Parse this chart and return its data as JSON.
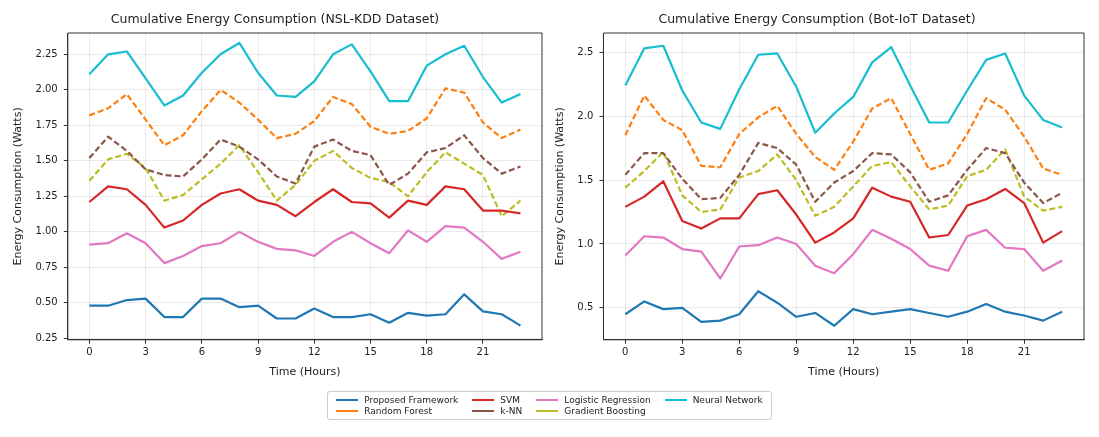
{
  "chart_data": [
    {
      "type": "line",
      "title": "Cumulative Energy Consumption (NSL-KDD Dataset)",
      "xlabel": "Time (Hours)",
      "ylabel": "Energy Consumption (Watts)",
      "x": [
        0,
        1,
        2,
        3,
        4,
        5,
        6,
        7,
        8,
        9,
        10,
        11,
        12,
        13,
        14,
        15,
        16,
        17,
        18,
        19,
        20,
        21,
        22,
        23
      ],
      "xlim": [
        -1.15,
        24.15
      ],
      "xticks": [
        0,
        3,
        6,
        9,
        12,
        15,
        18,
        21
      ],
      "ylim": [
        0.24,
        2.4
      ],
      "yticks": [
        {
          "value": 0.25,
          "label": "0.25"
        },
        {
          "value": 0.5,
          "label": "0.50"
        },
        {
          "value": 0.75,
          "label": "0.75"
        },
        {
          "value": 1,
          "label": "1.00"
        },
        {
          "value": 1.25,
          "label": "1.25"
        },
        {
          "value": 1.5,
          "label": "1.50"
        },
        {
          "value": 1.75,
          "label": "1.75"
        },
        {
          "value": 2,
          "label": "2.00"
        },
        {
          "value": 2.25,
          "label": "2.25"
        }
      ],
      "grid": true,
      "marker": "none",
      "legend": "bottom",
      "series": [
        {
          "name": "Proposed Framework",
          "color": "#1f77b4",
          "line_style": "solid",
          "values": [
            0.48,
            0.48,
            0.52,
            0.53,
            0.4,
            0.4,
            0.53,
            0.53,
            0.47,
            0.48,
            0.39,
            0.39,
            0.46,
            0.4,
            0.4,
            0.42,
            0.36,
            0.43,
            0.41,
            0.42,
            0.56,
            0.44,
            0.42,
            0.34
          ]
        },
        {
          "name": "Random Forest",
          "color": "#ff7f0e",
          "line_style": "dashed",
          "values": [
            1.82,
            1.87,
            1.97,
            1.79,
            1.61,
            1.68,
            1.85,
            2.0,
            1.91,
            1.79,
            1.66,
            1.69,
            1.78,
            1.95,
            1.9,
            1.74,
            1.69,
            1.71,
            1.8,
            2.01,
            1.98,
            1.77,
            1.66,
            1.72
          ]
        },
        {
          "name": "SVM",
          "color": "#d62728",
          "line_style": "solid",
          "values": [
            1.21,
            1.32,
            1.3,
            1.19,
            1.03,
            1.08,
            1.19,
            1.27,
            1.3,
            1.22,
            1.19,
            1.11,
            1.21,
            1.3,
            1.21,
            1.2,
            1.1,
            1.22,
            1.19,
            1.32,
            1.3,
            1.15,
            1.15,
            1.13
          ]
        },
        {
          "name": "k-NN",
          "color": "#8c564b",
          "line_style": "dashed",
          "values": [
            1.52,
            1.67,
            1.57,
            1.44,
            1.4,
            1.39,
            1.51,
            1.65,
            1.6,
            1.51,
            1.39,
            1.34,
            1.6,
            1.65,
            1.57,
            1.54,
            1.33,
            1.41,
            1.56,
            1.59,
            1.68,
            1.52,
            1.41,
            1.46
          ]
        },
        {
          "name": "Logistic Regression",
          "color": "#e377c2",
          "line_style": "solid",
          "values": [
            0.91,
            0.92,
            0.99,
            0.92,
            0.78,
            0.83,
            0.9,
            0.92,
            1.0,
            0.93,
            0.88,
            0.87,
            0.83,
            0.93,
            1.0,
            0.92,
            0.85,
            1.01,
            0.93,
            1.04,
            1.03,
            0.93,
            0.81,
            0.86
          ]
        },
        {
          "name": "Gradient Boosting",
          "color": "#bcbd22",
          "line_style": "dashed",
          "values": [
            1.36,
            1.51,
            1.55,
            1.45,
            1.22,
            1.26,
            1.37,
            1.48,
            1.61,
            1.42,
            1.22,
            1.33,
            1.5,
            1.57,
            1.45,
            1.38,
            1.35,
            1.25,
            1.42,
            1.56,
            1.48,
            1.4,
            1.11,
            1.22
          ]
        },
        {
          "name": "Neural Network",
          "color": "#17becf",
          "line_style": "solid",
          "values": [
            2.11,
            2.25,
            2.27,
            2.08,
            1.89,
            1.96,
            2.12,
            2.25,
            2.33,
            2.12,
            1.96,
            1.95,
            2.06,
            2.25,
            2.32,
            2.13,
            1.92,
            1.92,
            2.17,
            2.25,
            2.31,
            2.09,
            1.91,
            1.97
          ]
        }
      ]
    },
    {
      "type": "line",
      "title": "Cumulative Energy Consumption (Bot-IoT Dataset)",
      "xlabel": "Time (Hours)",
      "ylabel": "Energy Consumption (Watts)",
      "x": [
        0,
        1,
        2,
        3,
        4,
        5,
        6,
        7,
        8,
        9,
        10,
        11,
        12,
        13,
        14,
        15,
        16,
        17,
        18,
        19,
        20,
        21,
        22,
        23
      ],
      "xlim": [
        -1.15,
        24.15
      ],
      "xticks": [
        0,
        3,
        6,
        9,
        12,
        15,
        18,
        21
      ],
      "ylim": [
        0.25,
        2.65
      ],
      "yticks": [
        {
          "value": 0.5,
          "label": "0.5"
        },
        {
          "value": 1,
          "label": "1.0"
        },
        {
          "value": 1.5,
          "label": "1.5"
        },
        {
          "value": 2,
          "label": "2.0"
        },
        {
          "value": 2.5,
          "label": "2.5"
        }
      ],
      "grid": true,
      "marker": "none",
      "series": [
        {
          "color": "#1f77b4",
          "line_style": "solid",
          "values": [
            0.45,
            0.55,
            0.49,
            0.5,
            0.39,
            0.4,
            0.45,
            0.63,
            0.54,
            0.43,
            0.46,
            0.36,
            0.49,
            0.45,
            0.47,
            0.49,
            0.46,
            0.43,
            0.47,
            0.53,
            0.47,
            0.44,
            0.4,
            0.47
          ]
        },
        {
          "color": "#ff7f0e",
          "line_style": "dashed",
          "values": [
            1.85,
            2.16,
            1.97,
            1.89,
            1.61,
            1.6,
            1.86,
            1.99,
            2.08,
            1.86,
            1.68,
            1.58,
            1.8,
            2.06,
            2.14,
            1.86,
            1.58,
            1.63,
            1.86,
            2.14,
            2.05,
            1.84,
            1.59,
            1.54
          ]
        },
        {
          "color": "#d62728",
          "line_style": "solid",
          "values": [
            1.29,
            1.37,
            1.49,
            1.18,
            1.12,
            1.2,
            1.2,
            1.39,
            1.42,
            1.23,
            1.01,
            1.09,
            1.2,
            1.44,
            1.37,
            1.33,
            1.05,
            1.07,
            1.3,
            1.35,
            1.43,
            1.32,
            1.01,
            1.1
          ]
        },
        {
          "color": "#8c564b",
          "line_style": "dashed",
          "values": [
            1.54,
            1.71,
            1.71,
            1.51,
            1.35,
            1.36,
            1.54,
            1.79,
            1.75,
            1.62,
            1.33,
            1.48,
            1.57,
            1.71,
            1.7,
            1.56,
            1.33,
            1.38,
            1.58,
            1.75,
            1.71,
            1.48,
            1.32,
            1.4
          ]
        },
        {
          "color": "#e377c2",
          "line_style": "solid",
          "values": [
            0.91,
            1.06,
            1.05,
            0.96,
            0.94,
            0.73,
            0.98,
            0.99,
            1.05,
            1.0,
            0.83,
            0.77,
            0.92,
            1.11,
            1.04,
            0.96,
            0.83,
            0.79,
            1.06,
            1.11,
            0.97,
            0.96,
            0.79,
            0.87
          ]
        },
        {
          "color": "#bcbd22",
          "line_style": "dashed",
          "values": [
            1.44,
            1.57,
            1.72,
            1.38,
            1.25,
            1.27,
            1.52,
            1.57,
            1.7,
            1.5,
            1.22,
            1.29,
            1.45,
            1.61,
            1.64,
            1.45,
            1.27,
            1.3,
            1.53,
            1.58,
            1.74,
            1.37,
            1.26,
            1.29
          ]
        },
        {
          "color": "#17becf",
          "line_style": "solid",
          "values": [
            2.24,
            2.53,
            2.55,
            2.2,
            1.95,
            1.9,
            2.21,
            2.48,
            2.49,
            2.23,
            1.87,
            2.02,
            2.15,
            2.42,
            2.54,
            2.24,
            1.95,
            1.95,
            2.2,
            2.44,
            2.49,
            2.16,
            1.97,
            1.91
          ]
        }
      ]
    }
  ]
}
